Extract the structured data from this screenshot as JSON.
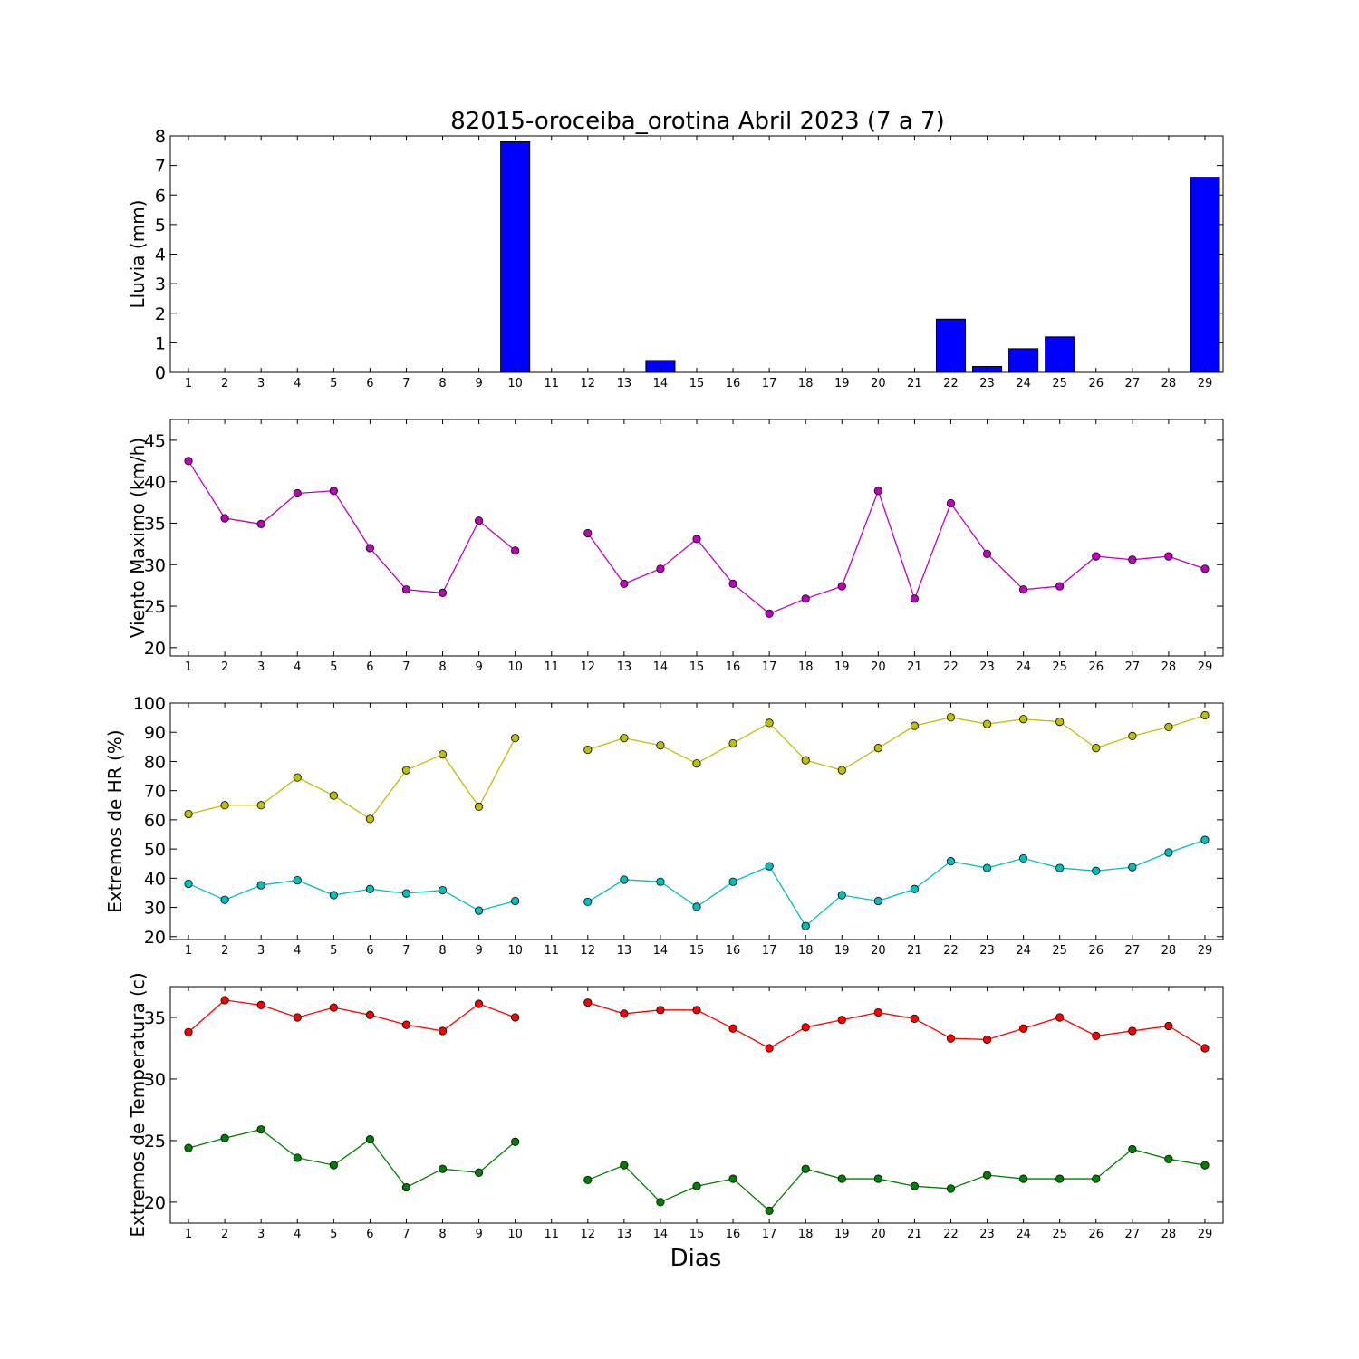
{
  "figure": {
    "title": "82015-oroceiba_orotina Abril 2023  (7 a 7)",
    "xlabel": "Dias"
  },
  "chart_data": [
    {
      "type": "bar",
      "ylabel": "Lluvia (mm)",
      "ylim": [
        0,
        8
      ],
      "yticks": [
        0,
        1,
        2,
        3,
        4,
        5,
        6,
        7,
        8
      ],
      "xlim": [
        0.5,
        29.5
      ],
      "x": [
        1,
        2,
        3,
        4,
        5,
        6,
        7,
        8,
        9,
        10,
        11,
        12,
        13,
        14,
        15,
        16,
        17,
        18,
        19,
        20,
        21,
        22,
        23,
        24,
        25,
        26,
        27,
        28,
        29
      ],
      "series": [
        {
          "color": "#0000ff",
          "values": [
            0,
            0,
            0,
            0,
            0,
            0,
            0,
            0,
            0,
            7.8,
            0,
            0,
            0,
            0.4,
            0,
            0,
            0,
            0,
            0,
            0,
            0,
            1.8,
            0.2,
            0.8,
            1.2,
            0,
            0,
            0,
            6.6
          ]
        }
      ]
    },
    {
      "type": "line",
      "ylabel": "Viento Maximo (km/h)",
      "ylim": [
        19,
        47.5
      ],
      "yticks": [
        20,
        25,
        30,
        35,
        40,
        45
      ],
      "xlim": [
        0.5,
        29.5
      ],
      "x": [
        1,
        2,
        3,
        4,
        5,
        6,
        7,
        8,
        9,
        10,
        11,
        12,
        13,
        14,
        15,
        16,
        17,
        18,
        19,
        20,
        21,
        22,
        23,
        24,
        25,
        26,
        27,
        28,
        29
      ],
      "series": [
        {
          "color": "#bf00bf",
          "values": [
            42.5,
            35.6,
            34.9,
            38.6,
            38.9,
            32.0,
            27.0,
            26.6,
            35.3,
            31.7,
            null,
            33.8,
            27.7,
            29.5,
            33.1,
            27.7,
            24.1,
            25.9,
            27.4,
            38.9,
            25.9,
            37.4,
            31.3,
            27.0,
            27.4,
            31.0,
            30.6,
            31.0,
            29.5
          ]
        }
      ]
    },
    {
      "type": "line",
      "ylabel": "Extremos de HR (%)",
      "ylim": [
        19,
        100
      ],
      "yticks": [
        20,
        30,
        40,
        50,
        60,
        70,
        80,
        90,
        100
      ],
      "xlim": [
        0.5,
        29.5
      ],
      "x": [
        1,
        2,
        3,
        4,
        5,
        6,
        7,
        8,
        9,
        10,
        11,
        12,
        13,
        14,
        15,
        16,
        17,
        18,
        19,
        20,
        21,
        22,
        23,
        24,
        25,
        26,
        27,
        28,
        29
      ],
      "series": [
        {
          "color": "#bfbf00",
          "values": [
            62,
            65,
            65,
            74.5,
            68.3,
            60.3,
            77,
            82.4,
            64.5,
            88,
            null,
            84,
            88,
            85.5,
            79.3,
            86.2,
            93.2,
            80.4,
            77,
            84.6,
            92.2,
            95.1,
            92.8,
            94.5,
            93.6,
            84.6,
            88.7,
            91.8,
            95.8
          ]
        },
        {
          "color": "#00bfbf",
          "values": [
            38.1,
            32.6,
            37.6,
            39.3,
            34.2,
            36.3,
            34.8,
            35.9,
            28.9,
            32.2,
            null,
            31.9,
            39.5,
            38.8,
            30.2,
            38.8,
            44.1,
            23.6,
            34.2,
            32.2,
            36.3,
            45.8,
            43.5,
            46.8,
            43.5,
            42.5,
            43.8,
            48.8,
            53.1
          ]
        }
      ]
    },
    {
      "type": "line",
      "ylabel": "Extremos de Temperatura (c)",
      "ylim": [
        18.3,
        37.5
      ],
      "yticks": [
        20,
        25,
        30,
        35
      ],
      "xlim": [
        0.5,
        29.5
      ],
      "x": [
        1,
        2,
        3,
        4,
        5,
        6,
        7,
        8,
        9,
        10,
        11,
        12,
        13,
        14,
        15,
        16,
        17,
        18,
        19,
        20,
        21,
        22,
        23,
        24,
        25,
        26,
        27,
        28,
        29
      ],
      "series": [
        {
          "color": "#ff0000",
          "values": [
            33.8,
            36.4,
            36.0,
            35.0,
            35.8,
            35.2,
            34.4,
            33.9,
            36.1,
            35.0,
            null,
            36.2,
            35.3,
            35.6,
            35.6,
            34.1,
            32.5,
            34.2,
            34.8,
            35.4,
            34.9,
            33.3,
            33.2,
            34.1,
            35.0,
            33.5,
            33.9,
            34.3,
            32.5
          ]
        },
        {
          "color": "#008000",
          "values": [
            24.4,
            25.2,
            25.9,
            23.6,
            23.0,
            25.1,
            21.2,
            22.7,
            22.4,
            24.9,
            null,
            21.8,
            23.0,
            20.0,
            21.3,
            21.9,
            19.3,
            22.7,
            21.9,
            21.9,
            21.3,
            21.1,
            22.2,
            21.9,
            21.9,
            21.9,
            24.3,
            23.5,
            23.0
          ]
        }
      ]
    }
  ]
}
